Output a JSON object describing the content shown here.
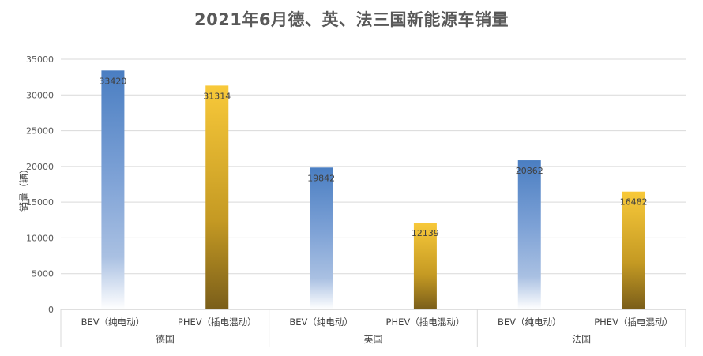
{
  "chart_data": {
    "type": "bar",
    "title": "2021年6月德、英、法三国新能源车销量",
    "ylabel": "销量（辆）",
    "xlabel": "",
    "ylim": [
      0,
      35000
    ],
    "yticks": [
      "0",
      "5000",
      "10000",
      "15000",
      "20000",
      "25000",
      "30000",
      "35000"
    ],
    "grid": true,
    "groups": [
      {
        "name": "德国",
        "bars": [
          {
            "label": "BEV（纯电动）",
            "value": 33420,
            "color": "#4A7EC2"
          },
          {
            "label": "PHEV（插电混动）",
            "value": 31314,
            "color": "#F6C630"
          }
        ]
      },
      {
        "name": "英国",
        "bars": [
          {
            "label": "BEV（纯电动）",
            "value": 19842,
            "color": "#4A7EC2"
          },
          {
            "label": "PHEV（插电混动）",
            "value": 12139,
            "color": "#F6C630"
          }
        ]
      },
      {
        "name": "法国",
        "bars": [
          {
            "label": "BEV（纯电动）",
            "value": 20862,
            "color": "#4A7EC2"
          },
          {
            "label": "PHEV（插电混动）",
            "value": 16482,
            "color": "#F6C630"
          }
        ]
      }
    ]
  }
}
